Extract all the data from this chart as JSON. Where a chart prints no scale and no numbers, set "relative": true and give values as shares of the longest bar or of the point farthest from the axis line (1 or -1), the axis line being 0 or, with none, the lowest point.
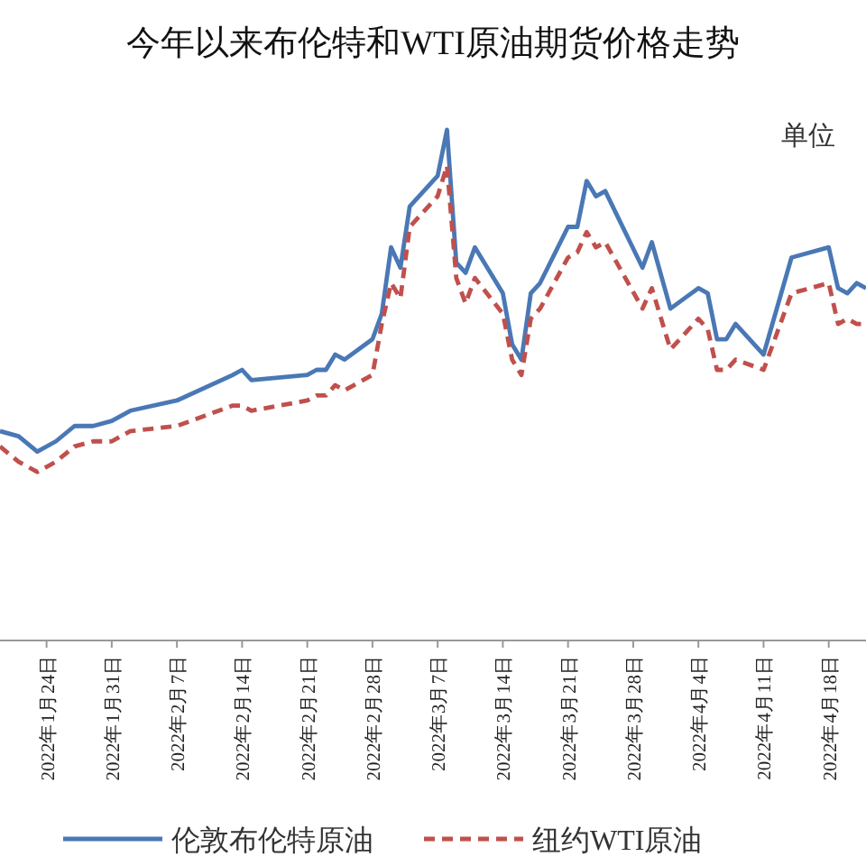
{
  "chart_data": {
    "type": "line",
    "title": "今年以来布伦特和WTI原油期货价格走势",
    "annotations": [
      "单位"
    ],
    "relative": true,
    "legend": "bottom",
    "xlim": [
      "2022-01-19",
      "2022-04-22"
    ],
    "xticks": [
      {
        "value": "2022-01-24",
        "label": "2022年1月24日"
      },
      {
        "value": "2022-01-31",
        "label": "2022年1月31日"
      },
      {
        "value": "2022-02-07",
        "label": "2022年2月7日"
      },
      {
        "value": "2022-02-14",
        "label": "2022年2月14日"
      },
      {
        "value": "2022-02-21",
        "label": "2022年2月21日"
      },
      {
        "value": "2022-02-28",
        "label": "2022年2月28日"
      },
      {
        "value": "2022-03-07",
        "label": "2022年3月7日"
      },
      {
        "value": "2022-03-14",
        "label": "2022年3月14日"
      },
      {
        "value": "2022-03-21",
        "label": "2022年3月21日"
      },
      {
        "value": "2022-03-28",
        "label": "2022年3月28日"
      },
      {
        "value": "2022-04-04",
        "label": "2022年4月4日"
      },
      {
        "value": "2022-04-11",
        "label": "2022年4月11日"
      },
      {
        "value": "2022-04-18",
        "label": "2022年4月18日"
      }
    ],
    "x": [
      "2022-01-19",
      "2022-01-21",
      "2022-01-23",
      "2022-01-25",
      "2022-01-27",
      "2022-01-29",
      "2022-01-31",
      "2022-02-02",
      "2022-02-07",
      "2022-02-13",
      "2022-02-14",
      "2022-02-15",
      "2022-02-21",
      "2022-02-22",
      "2022-02-23",
      "2022-02-24",
      "2022-02-25",
      "2022-02-28",
      "2022-03-01",
      "2022-03-02",
      "2022-03-03",
      "2022-03-04",
      "2022-03-07",
      "2022-03-08",
      "2022-03-09",
      "2022-03-10",
      "2022-03-11",
      "2022-03-14",
      "2022-03-15",
      "2022-03-16",
      "2022-03-17",
      "2022-03-18",
      "2022-03-21",
      "2022-03-22",
      "2022-03-23",
      "2022-03-24",
      "2022-03-25",
      "2022-03-29",
      "2022-03-30",
      "2022-04-01",
      "2022-04-04",
      "2022-04-05",
      "2022-04-06",
      "2022-04-07",
      "2022-04-08",
      "2022-04-11",
      "2022-04-14",
      "2022-04-18",
      "2022-04-19",
      "2022-04-20",
      "2022-04-21",
      "2022-04-22"
    ],
    "series": [
      {
        "name": "伦敦布伦特原油",
        "color": "#4a78b5",
        "line_style": "solid",
        "values": [
          0.41,
          0.4,
          0.37,
          0.39,
          0.42,
          0.42,
          0.43,
          0.45,
          0.47,
          0.52,
          0.53,
          0.51,
          0.52,
          0.53,
          0.53,
          0.56,
          0.55,
          0.59,
          0.64,
          0.77,
          0.73,
          0.85,
          0.91,
          1.0,
          0.74,
          0.72,
          0.77,
          0.68,
          0.58,
          0.55,
          0.68,
          0.7,
          0.81,
          0.81,
          0.9,
          0.87,
          0.88,
          0.73,
          0.78,
          0.65,
          0.69,
          0.68,
          0.59,
          0.59,
          0.62,
          0.56,
          0.75,
          0.77,
          0.69,
          0.68,
          0.7,
          0.69
        ]
      },
      {
        "name": "纽约WTI原油",
        "color": "#c0504d",
        "line_style": "dashed",
        "values": [
          0.38,
          0.35,
          0.33,
          0.35,
          0.38,
          0.39,
          0.39,
          0.41,
          0.42,
          0.46,
          0.46,
          0.45,
          0.47,
          0.48,
          0.48,
          0.5,
          0.49,
          0.52,
          0.62,
          0.7,
          0.67,
          0.81,
          0.87,
          0.93,
          0.71,
          0.66,
          0.71,
          0.64,
          0.55,
          0.52,
          0.63,
          0.65,
          0.75,
          0.76,
          0.8,
          0.77,
          0.78,
          0.65,
          0.69,
          0.57,
          0.63,
          0.61,
          0.53,
          0.53,
          0.55,
          0.53,
          0.68,
          0.7,
          0.62,
          0.63,
          0.62,
          0.62
        ]
      }
    ]
  }
}
